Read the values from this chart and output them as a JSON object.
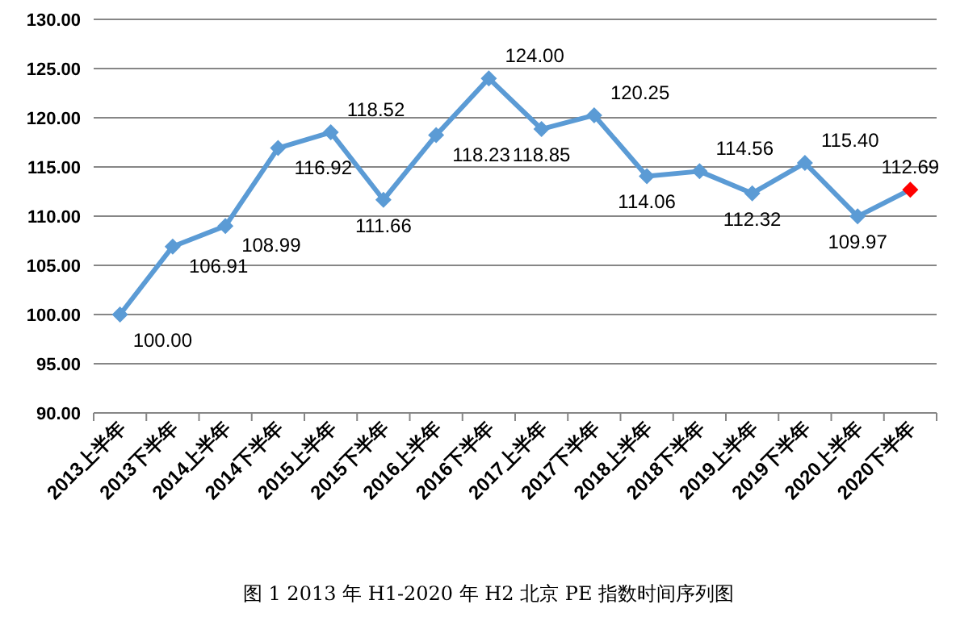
{
  "chart_data": {
    "type": "line",
    "categories": [
      "2013上半年",
      "2013下半年",
      "2014上半年",
      "2014下半年",
      "2015上半年",
      "2015下半年",
      "2016上半年",
      "2016下半年",
      "2017上半年",
      "2017下半年",
      "2018上半年",
      "2018下半年",
      "2019上半年",
      "2019下半年",
      "2020上半年",
      "2020下半年"
    ],
    "series": [
      {
        "color": "#5b9bd5",
        "colors": [
          "#5b9bd5",
          "#5b9bd5",
          "#5b9bd5",
          "#5b9bd5",
          "#5b9bd5",
          "#5b9bd5",
          "#5b9bd5",
          "#5b9bd5",
          "#5b9bd5",
          "#5b9bd5",
          "#5b9bd5",
          "#5b9bd5",
          "#5b9bd5",
          "#5b9bd5",
          "#5b9bd5",
          "#ff0000"
        ],
        "values": [
          100.0,
          106.91,
          108.99,
          116.92,
          118.52,
          111.66,
          118.23,
          124.0,
          118.85,
          120.25,
          114.06,
          114.56,
          112.32,
          115.4,
          109.97,
          112.69
        ]
      }
    ],
    "value_labels": [
      "100.00",
      "106.91",
      "108.99",
      "116.92",
      "118.52",
      "111.66",
      "118.23",
      "124.00",
      "118.85",
      "120.25",
      "114.06",
      "114.56",
      "112.32",
      "115.40",
      "109.97",
      "112.69"
    ],
    "ylim": [
      90,
      130
    ],
    "yticks": [
      {
        "value": 90,
        "label": "90.00"
      },
      {
        "value": 95,
        "label": "95.00"
      },
      {
        "value": 100,
        "label": "100.00"
      },
      {
        "value": 105,
        "label": "105.00"
      },
      {
        "value": 110,
        "label": "110.00"
      },
      {
        "value": 115,
        "label": "115.00"
      },
      {
        "value": 120,
        "label": "120.00"
      },
      {
        "value": 125,
        "label": "125.00"
      },
      {
        "value": 130,
        "label": "130.00"
      }
    ],
    "grid": "y",
    "marker": "diamond",
    "line_style": "solid",
    "annotations": [
      "图 1   2013 年 H1-2020 年 H2 北京 PE 指数时间序列图"
    ]
  }
}
